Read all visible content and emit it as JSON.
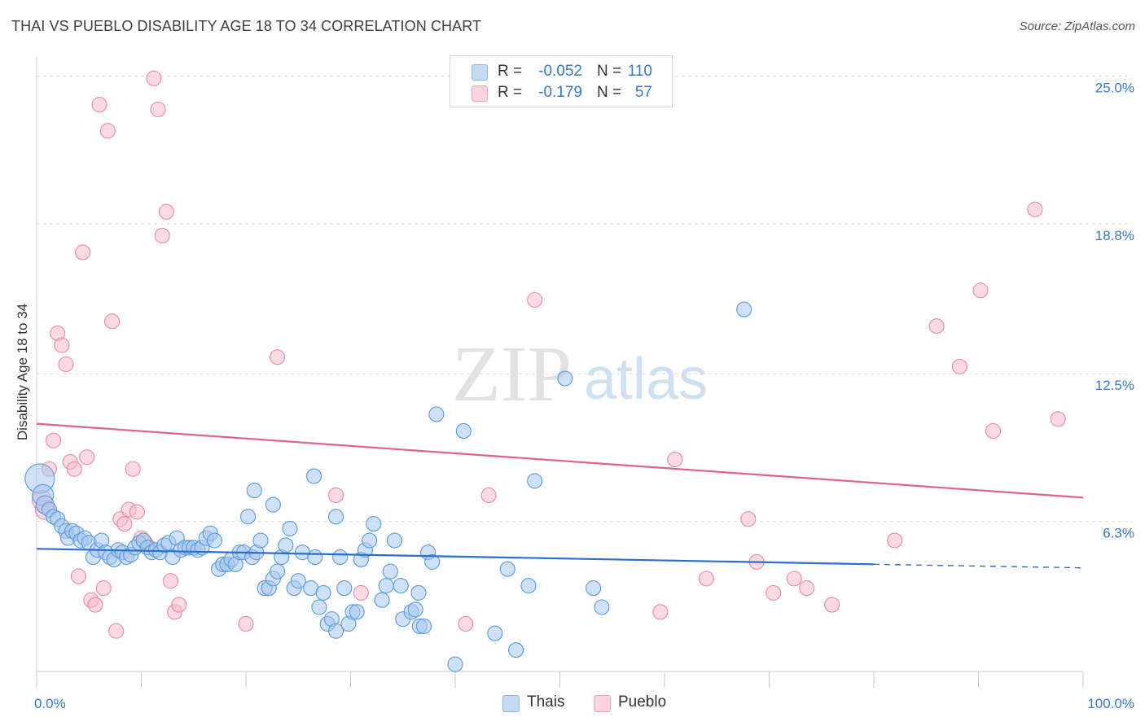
{
  "title": "THAI VS PUEBLO DISABILITY AGE 18 TO 34 CORRELATION CHART",
  "source": {
    "label": "Source:",
    "site": "ZipAtlas.com"
  },
  "watermark": {
    "zip": "ZIP",
    "atlas": "atlas"
  },
  "colors": {
    "thai_fill": "#a8c8ee",
    "thai_stroke": "#5a9ad8",
    "thai_line": "#2a6fd0",
    "pueblo_fill": "#f7bccd",
    "pueblo_stroke": "#e88aa6",
    "pueblo_line": "#e0628c",
    "tick_label": "#3a78c8",
    "grid": "#e0e0e0"
  },
  "legend": {
    "rows": [
      {
        "r_label": "R =",
        "r_value": "-0.052",
        "n_label": "N =",
        "n_value": "110"
      },
      {
        "r_label": "R =",
        "r_value": "-0.179",
        "n_label": "N =",
        "n_value": "57"
      }
    ]
  },
  "chart_data": {
    "type": "scatter",
    "title": "THAI VS PUEBLO DISABILITY AGE 18 TO 34 CORRELATION CHART",
    "xlabel": "",
    "ylabel": "Disability Age 18 to 34",
    "xlim": [
      0,
      100
    ],
    "ylim": [
      0,
      25.8
    ],
    "x_tick_labels": [
      "0.0%",
      "100.0%"
    ],
    "y_ticks": [
      6.3,
      12.5,
      18.8,
      25.0
    ],
    "y_tick_labels": [
      "6.3%",
      "12.5%",
      "18.8%",
      "25.0%"
    ],
    "series": [
      {
        "name": "Thais",
        "color": "#5a9ad8",
        "trend": {
          "x0": 0,
          "y0": 5.15,
          "x1": 80,
          "y1": 4.5,
          "dash_x1": 100,
          "dash_y1": 4.35
        },
        "points": [
          [
            0.3,
            8.1
          ],
          [
            0.6,
            7.4
          ],
          [
            0.8,
            7.0
          ],
          [
            1.2,
            6.8
          ],
          [
            1.6,
            6.5
          ],
          [
            2.0,
            6.4
          ],
          [
            2.4,
            6.1
          ],
          [
            2.8,
            5.9
          ],
          [
            3.0,
            5.6
          ],
          [
            3.4,
            5.9
          ],
          [
            3.8,
            5.8
          ],
          [
            4.2,
            5.5
          ],
          [
            4.6,
            5.6
          ],
          [
            5.0,
            5.4
          ],
          [
            5.4,
            4.8
          ],
          [
            5.8,
            5.1
          ],
          [
            6.2,
            5.5
          ],
          [
            6.6,
            5.0
          ],
          [
            7.0,
            4.8
          ],
          [
            7.4,
            4.7
          ],
          [
            7.8,
            5.1
          ],
          [
            8.2,
            5.0
          ],
          [
            8.6,
            4.8
          ],
          [
            9.0,
            4.9
          ],
          [
            9.4,
            5.2
          ],
          [
            9.8,
            5.4
          ],
          [
            10.2,
            5.5
          ],
          [
            10.6,
            5.2
          ],
          [
            11.0,
            5.0
          ],
          [
            11.4,
            5.1
          ],
          [
            11.8,
            5.0
          ],
          [
            12.2,
            5.3
          ],
          [
            12.6,
            5.4
          ],
          [
            13.0,
            4.8
          ],
          [
            13.4,
            5.6
          ],
          [
            13.8,
            5.1
          ],
          [
            14.2,
            5.2
          ],
          [
            14.6,
            5.2
          ],
          [
            15.0,
            5.2
          ],
          [
            15.4,
            5.1
          ],
          [
            15.8,
            5.2
          ],
          [
            16.2,
            5.6
          ],
          [
            16.6,
            5.8
          ],
          [
            17.0,
            5.5
          ],
          [
            17.4,
            4.3
          ],
          [
            17.8,
            4.5
          ],
          [
            18.2,
            4.5
          ],
          [
            18.6,
            4.7
          ],
          [
            19.0,
            4.5
          ],
          [
            19.4,
            5.0
          ],
          [
            19.8,
            5.0
          ],
          [
            20.2,
            6.5
          ],
          [
            20.6,
            4.8
          ],
          [
            21.0,
            5.0
          ],
          [
            21.4,
            5.5
          ],
          [
            21.8,
            3.5
          ],
          [
            22.2,
            3.5
          ],
          [
            22.6,
            3.9
          ],
          [
            23.0,
            4.2
          ],
          [
            23.4,
            4.8
          ],
          [
            23.8,
            5.3
          ],
          [
            24.2,
            6.0
          ],
          [
            24.6,
            3.5
          ],
          [
            25.0,
            3.8
          ],
          [
            25.4,
            5.0
          ],
          [
            26.2,
            3.5
          ],
          [
            26.6,
            4.8
          ],
          [
            27.0,
            2.7
          ],
          [
            27.4,
            3.3
          ],
          [
            27.8,
            2.0
          ],
          [
            28.2,
            2.2
          ],
          [
            28.6,
            1.7
          ],
          [
            29.0,
            4.8
          ],
          [
            29.4,
            3.5
          ],
          [
            29.8,
            2.0
          ],
          [
            30.2,
            2.5
          ],
          [
            30.6,
            2.5
          ],
          [
            31.0,
            4.7
          ],
          [
            31.4,
            5.1
          ],
          [
            31.8,
            5.5
          ],
          [
            32.2,
            6.2
          ],
          [
            33.0,
            3.0
          ],
          [
            33.4,
            3.6
          ],
          [
            34.2,
            5.5
          ],
          [
            35.0,
            2.2
          ],
          [
            35.8,
            2.5
          ],
          [
            36.2,
            2.6
          ],
          [
            36.6,
            1.9
          ],
          [
            37.0,
            1.9
          ],
          [
            37.4,
            5.0
          ],
          [
            37.8,
            4.6
          ],
          [
            38.2,
            10.8
          ],
          [
            40.8,
            10.1
          ],
          [
            43.8,
            1.6
          ],
          [
            45.0,
            4.3
          ],
          [
            45.8,
            0.9
          ],
          [
            47.0,
            3.6
          ],
          [
            47.6,
            8.0
          ],
          [
            50.5,
            12.3
          ],
          [
            53.2,
            3.5
          ],
          [
            54.0,
            2.7
          ],
          [
            67.6,
            15.2
          ],
          [
            20.8,
            7.6
          ],
          [
            22.6,
            7.0
          ],
          [
            26.5,
            8.2
          ],
          [
            28.6,
            6.5
          ],
          [
            33.8,
            4.2
          ],
          [
            34.8,
            3.6
          ],
          [
            36.5,
            3.3
          ],
          [
            40.0,
            0.3
          ]
        ]
      },
      {
        "name": "Pueblo",
        "color": "#e88aa6",
        "trend": {
          "x0": 0,
          "y0": 10.4,
          "x1": 100,
          "y1": 7.3
        },
        "points": [
          [
            0.5,
            7.2
          ],
          [
            0.8,
            6.8
          ],
          [
            1.2,
            8.5
          ],
          [
            1.6,
            9.7
          ],
          [
            2.0,
            14.2
          ],
          [
            2.4,
            13.7
          ],
          [
            2.8,
            12.9
          ],
          [
            3.2,
            8.8
          ],
          [
            3.6,
            8.5
          ],
          [
            4.0,
            4.0
          ],
          [
            4.4,
            17.6
          ],
          [
            4.8,
            9.0
          ],
          [
            5.2,
            3.0
          ],
          [
            5.6,
            2.8
          ],
          [
            6.0,
            23.8
          ],
          [
            6.4,
            3.5
          ],
          [
            6.8,
            22.7
          ],
          [
            7.2,
            14.7
          ],
          [
            7.6,
            1.7
          ],
          [
            8.0,
            6.4
          ],
          [
            8.4,
            6.2
          ],
          [
            8.8,
            6.8
          ],
          [
            9.2,
            8.5
          ],
          [
            9.6,
            6.7
          ],
          [
            10.0,
            5.6
          ],
          [
            10.4,
            5.4
          ],
          [
            10.8,
            5.2
          ],
          [
            11.2,
            24.9
          ],
          [
            11.6,
            23.6
          ],
          [
            12.0,
            18.3
          ],
          [
            12.4,
            19.3
          ],
          [
            12.8,
            3.8
          ],
          [
            13.2,
            2.5
          ],
          [
            13.6,
            2.8
          ],
          [
            20.0,
            2.0
          ],
          [
            23.0,
            13.2
          ],
          [
            28.6,
            7.4
          ],
          [
            31.0,
            3.3
          ],
          [
            41.0,
            2.0
          ],
          [
            43.2,
            7.4
          ],
          [
            47.6,
            15.6
          ],
          [
            59.6,
            2.5
          ],
          [
            61.0,
            8.9
          ],
          [
            64.0,
            3.9
          ],
          [
            68.0,
            6.4
          ],
          [
            68.8,
            4.6
          ],
          [
            70.4,
            3.3
          ],
          [
            72.4,
            3.9
          ],
          [
            73.6,
            3.5
          ],
          [
            76.0,
            2.8
          ],
          [
            82.0,
            5.5
          ],
          [
            86.0,
            14.5
          ],
          [
            88.2,
            12.8
          ],
          [
            90.2,
            16.0
          ],
          [
            91.4,
            10.1
          ],
          [
            95.4,
            19.4
          ],
          [
            97.6,
            10.6
          ]
        ]
      }
    ]
  }
}
